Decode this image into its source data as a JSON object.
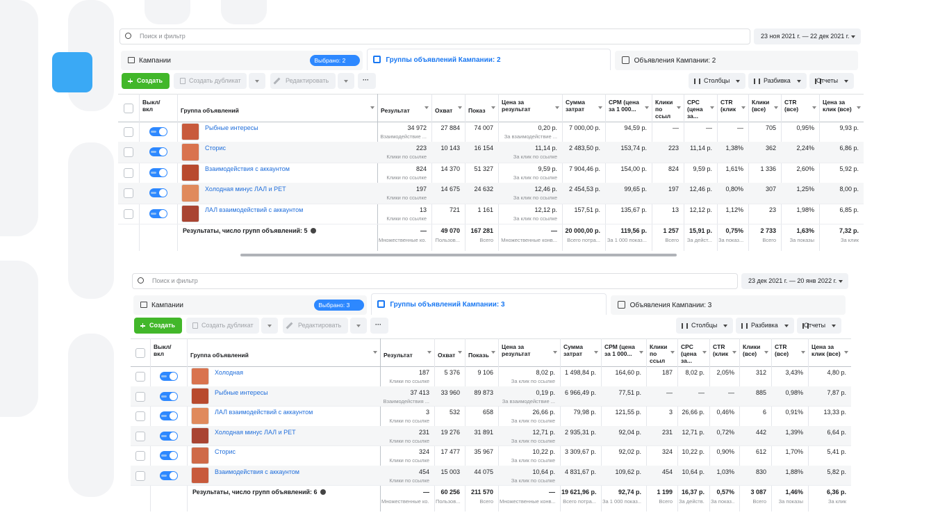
{
  "panels": [
    {
      "search": "Поиск и фильтр",
      "date_range": "23 ноя 2021 г. — 22 дек 2021 г.",
      "tabs": {
        "campaigns": "Кампании",
        "selected": "Выбрано: 2",
        "ad_sets": "Группы объявлений Кампании: 2",
        "ads": "Объявления Кампании: 2"
      },
      "toolbar": {
        "create": "Создать",
        "duplicate": "Создать дубликат",
        "edit": "Редактировать",
        "more": "···",
        "columns": "Столбцы",
        "breakdown": "Разбивка",
        "reports": "Отчеты"
      },
      "columns": [
        "Выкл/ вкл",
        "Группа объявлений",
        "Результат",
        "Охват",
        "Показ",
        "Цена за результат",
        "Сумма затрат",
        "CPM (цена за 1 000...",
        "Клики по ссыл",
        "CPC (цена за...",
        "CTR (клик",
        "Клики (все)",
        "CTR (все)",
        "Цена за клик (все)"
      ],
      "rows": [
        {
          "name": "Рыбные интересы",
          "cells": [
            [
              "34 972",
              "Взаимодействие ..."
            ],
            "27 884",
            "74 007",
            [
              "0,20 р.",
              "За взаимодействие ..."
            ],
            "7 000,00 р.",
            "94,59 р.",
            "—",
            "—",
            "—",
            "705",
            "0,95%",
            "9,93 р."
          ]
        },
        {
          "name": "Сторис",
          "cells": [
            [
              "223",
              "Клики по ссылке"
            ],
            "10 143",
            "16 154",
            [
              "11,14 р.",
              "За клик по ссылке"
            ],
            "2 483,50 р.",
            "153,74 р.",
            "223",
            "11,14 р.",
            "1,38%",
            "362",
            "2,24%",
            "6,86 р."
          ]
        },
        {
          "name": "Взаимодействия с аккаунтом",
          "cells": [
            [
              "824",
              "Клики по ссылке"
            ],
            "14 370",
            "51 327",
            [
              "9,59 р.",
              "За клик по ссылке"
            ],
            "7 904,46 р.",
            "154,00 р.",
            "824",
            "9,59 р.",
            "1,61%",
            "1 336",
            "2,60%",
            "5,92 р."
          ]
        },
        {
          "name": "Холодная минус ЛАЛ и РЕТ",
          "cells": [
            [
              "197",
              "Клики по ссылке"
            ],
            "14 675",
            "24 632",
            [
              "12,46 р.",
              "За клик по ссылке"
            ],
            "2 454,53 р.",
            "99,65 р.",
            "197",
            "12,46 р.",
            "0,80%",
            "307",
            "1,25%",
            "8,00 р."
          ]
        },
        {
          "name": "ЛАЛ взаимодействий с аккаунтом",
          "cells": [
            [
              "13",
              "Клики по ссылке"
            ],
            "721",
            "1 161",
            [
              "12,12 р.",
              "За клик по ссылке"
            ],
            "157,51 р.",
            "135,67 р.",
            "13",
            "12,12 р.",
            "1,12%",
            "23",
            "1,98%",
            "6,85 р."
          ]
        }
      ],
      "totals": {
        "label": "Результаты, число групп объявлений: 5",
        "cells": [
          [
            "—",
            "Множественные ко..."
          ],
          [
            "49 070",
            "Пользов..."
          ],
          [
            "167 281",
            "Всего"
          ],
          [
            "—",
            "Множественные конв..."
          ],
          [
            "20 000,00 р.",
            "Всего потра..."
          ],
          [
            "119,56 р.",
            "За 1 000 показ..."
          ],
          [
            "1 257",
            "Всего"
          ],
          [
            "15,91 р.",
            "За дейст..."
          ],
          [
            "0,75%",
            "За показ..."
          ],
          [
            "2 733",
            "Всего"
          ],
          [
            "1,63%",
            "За показы"
          ],
          [
            "7,32 р.",
            "За клик"
          ]
        ]
      }
    },
    {
      "search": "Поиск и фильтр",
      "date_range": "23 дек 2021 г. — 20 янв 2022 г.",
      "tabs": {
        "campaigns": "Кампании",
        "selected": "Выбрано: 3",
        "ad_sets": "Группы объявлений Кампании: 3",
        "ads": "Объявления Кампании: 3"
      },
      "toolbar": {
        "create": "Создать",
        "duplicate": "Создать дубликат",
        "edit": "Редактировать",
        "more": "···",
        "columns": "Столбцы",
        "breakdown": "Разбивка",
        "reports": "Отчеты"
      },
      "columns": [
        "Выкл/ вкл",
        "Группа объявлений",
        "Результат",
        "Охват",
        "Показы",
        "Цена за результат",
        "Сумма затрат",
        "CPM (цена за 1 000...",
        "Клики по ссыл",
        "CPC (цена за...",
        "CTR (клик",
        "Клики (все)",
        "CTR (все)",
        "Цена за клик (все)"
      ],
      "rows": [
        {
          "name": "Холодная",
          "cells": [
            [
              "187",
              "Клики по ссылке"
            ],
            "5 376",
            "9 106",
            [
              "8,02 р.",
              "За клик по ссылке"
            ],
            "1 498,84 р.",
            "164,60 р.",
            "187",
            "8,02 р.",
            "2,05%",
            "312",
            "3,43%",
            "4,80 р."
          ]
        },
        {
          "name": "Рыбные интересы",
          "cells": [
            [
              "37 413",
              "Взаимодействия ..."
            ],
            "33 960",
            "89 873",
            [
              "0,19 р.",
              "За взаимодействие ..."
            ],
            "6 966,49 р.",
            "77,51 р.",
            "—",
            "—",
            "—",
            "885",
            "0,98%",
            "7,87 р."
          ]
        },
        {
          "name": "ЛАЛ взаимодействий с аккаунтом",
          "cells": [
            [
              "3",
              "Клики по ссылке"
            ],
            "532",
            "658",
            [
              "26,66 р.",
              "За клик по ссылке"
            ],
            "79,98 р.",
            "121,55 р.",
            "3",
            "26,66 р.",
            "0,46%",
            "6",
            "0,91%",
            "13,33 р."
          ]
        },
        {
          "name": "Холодная минус ЛАЛ и РЕТ",
          "cells": [
            [
              "231",
              "Клики по ссылке"
            ],
            "19 276",
            "31 891",
            [
              "12,71 р.",
              "За клик по ссылке"
            ],
            "2 935,31 р.",
            "92,04 р.",
            "231",
            "12,71 р.",
            "0,72%",
            "442",
            "1,39%",
            "6,64 р."
          ]
        },
        {
          "name": "Сторис",
          "cells": [
            [
              "324",
              "Клики по ссылке"
            ],
            "17 477",
            "35 967",
            [
              "10,22 р.",
              "За клик по ссылке"
            ],
            "3 309,67 р.",
            "92,02 р.",
            "324",
            "10,22 р.",
            "0,90%",
            "612",
            "1,70%",
            "5,41 р."
          ]
        },
        {
          "name": "Взаимодействия с аккаунтом",
          "cells": [
            [
              "454",
              "Клики по ссылке"
            ],
            "15 003",
            "44 075",
            [
              "10,64 р.",
              "За клик по ссылке"
            ],
            "4 831,67 р.",
            "109,62 р.",
            "454",
            "10,64 р.",
            "1,03%",
            "830",
            "1,88%",
            "5,82 р."
          ]
        }
      ],
      "totals": {
        "label": "Результаты, число групп объявлений: 6",
        "cells": [
          [
            "—",
            "Множественные ко..."
          ],
          [
            "60 256",
            "Пользов..."
          ],
          [
            "211 570",
            "Всего"
          ],
          [
            "—",
            "Множественные конв..."
          ],
          [
            "19 621,96 р.",
            "Всего потра..."
          ],
          [
            "92,74 р.",
            "За 1 000 показ..."
          ],
          [
            "1 199",
            "Всего"
          ],
          [
            "16,37 р.",
            "За действ..."
          ],
          [
            "0,57%",
            "За показ..."
          ],
          [
            "3 087",
            "Всего"
          ],
          [
            "1,46%",
            "За показы"
          ],
          [
            "6,36 р.",
            "За клик"
          ]
        ]
      }
    }
  ]
}
